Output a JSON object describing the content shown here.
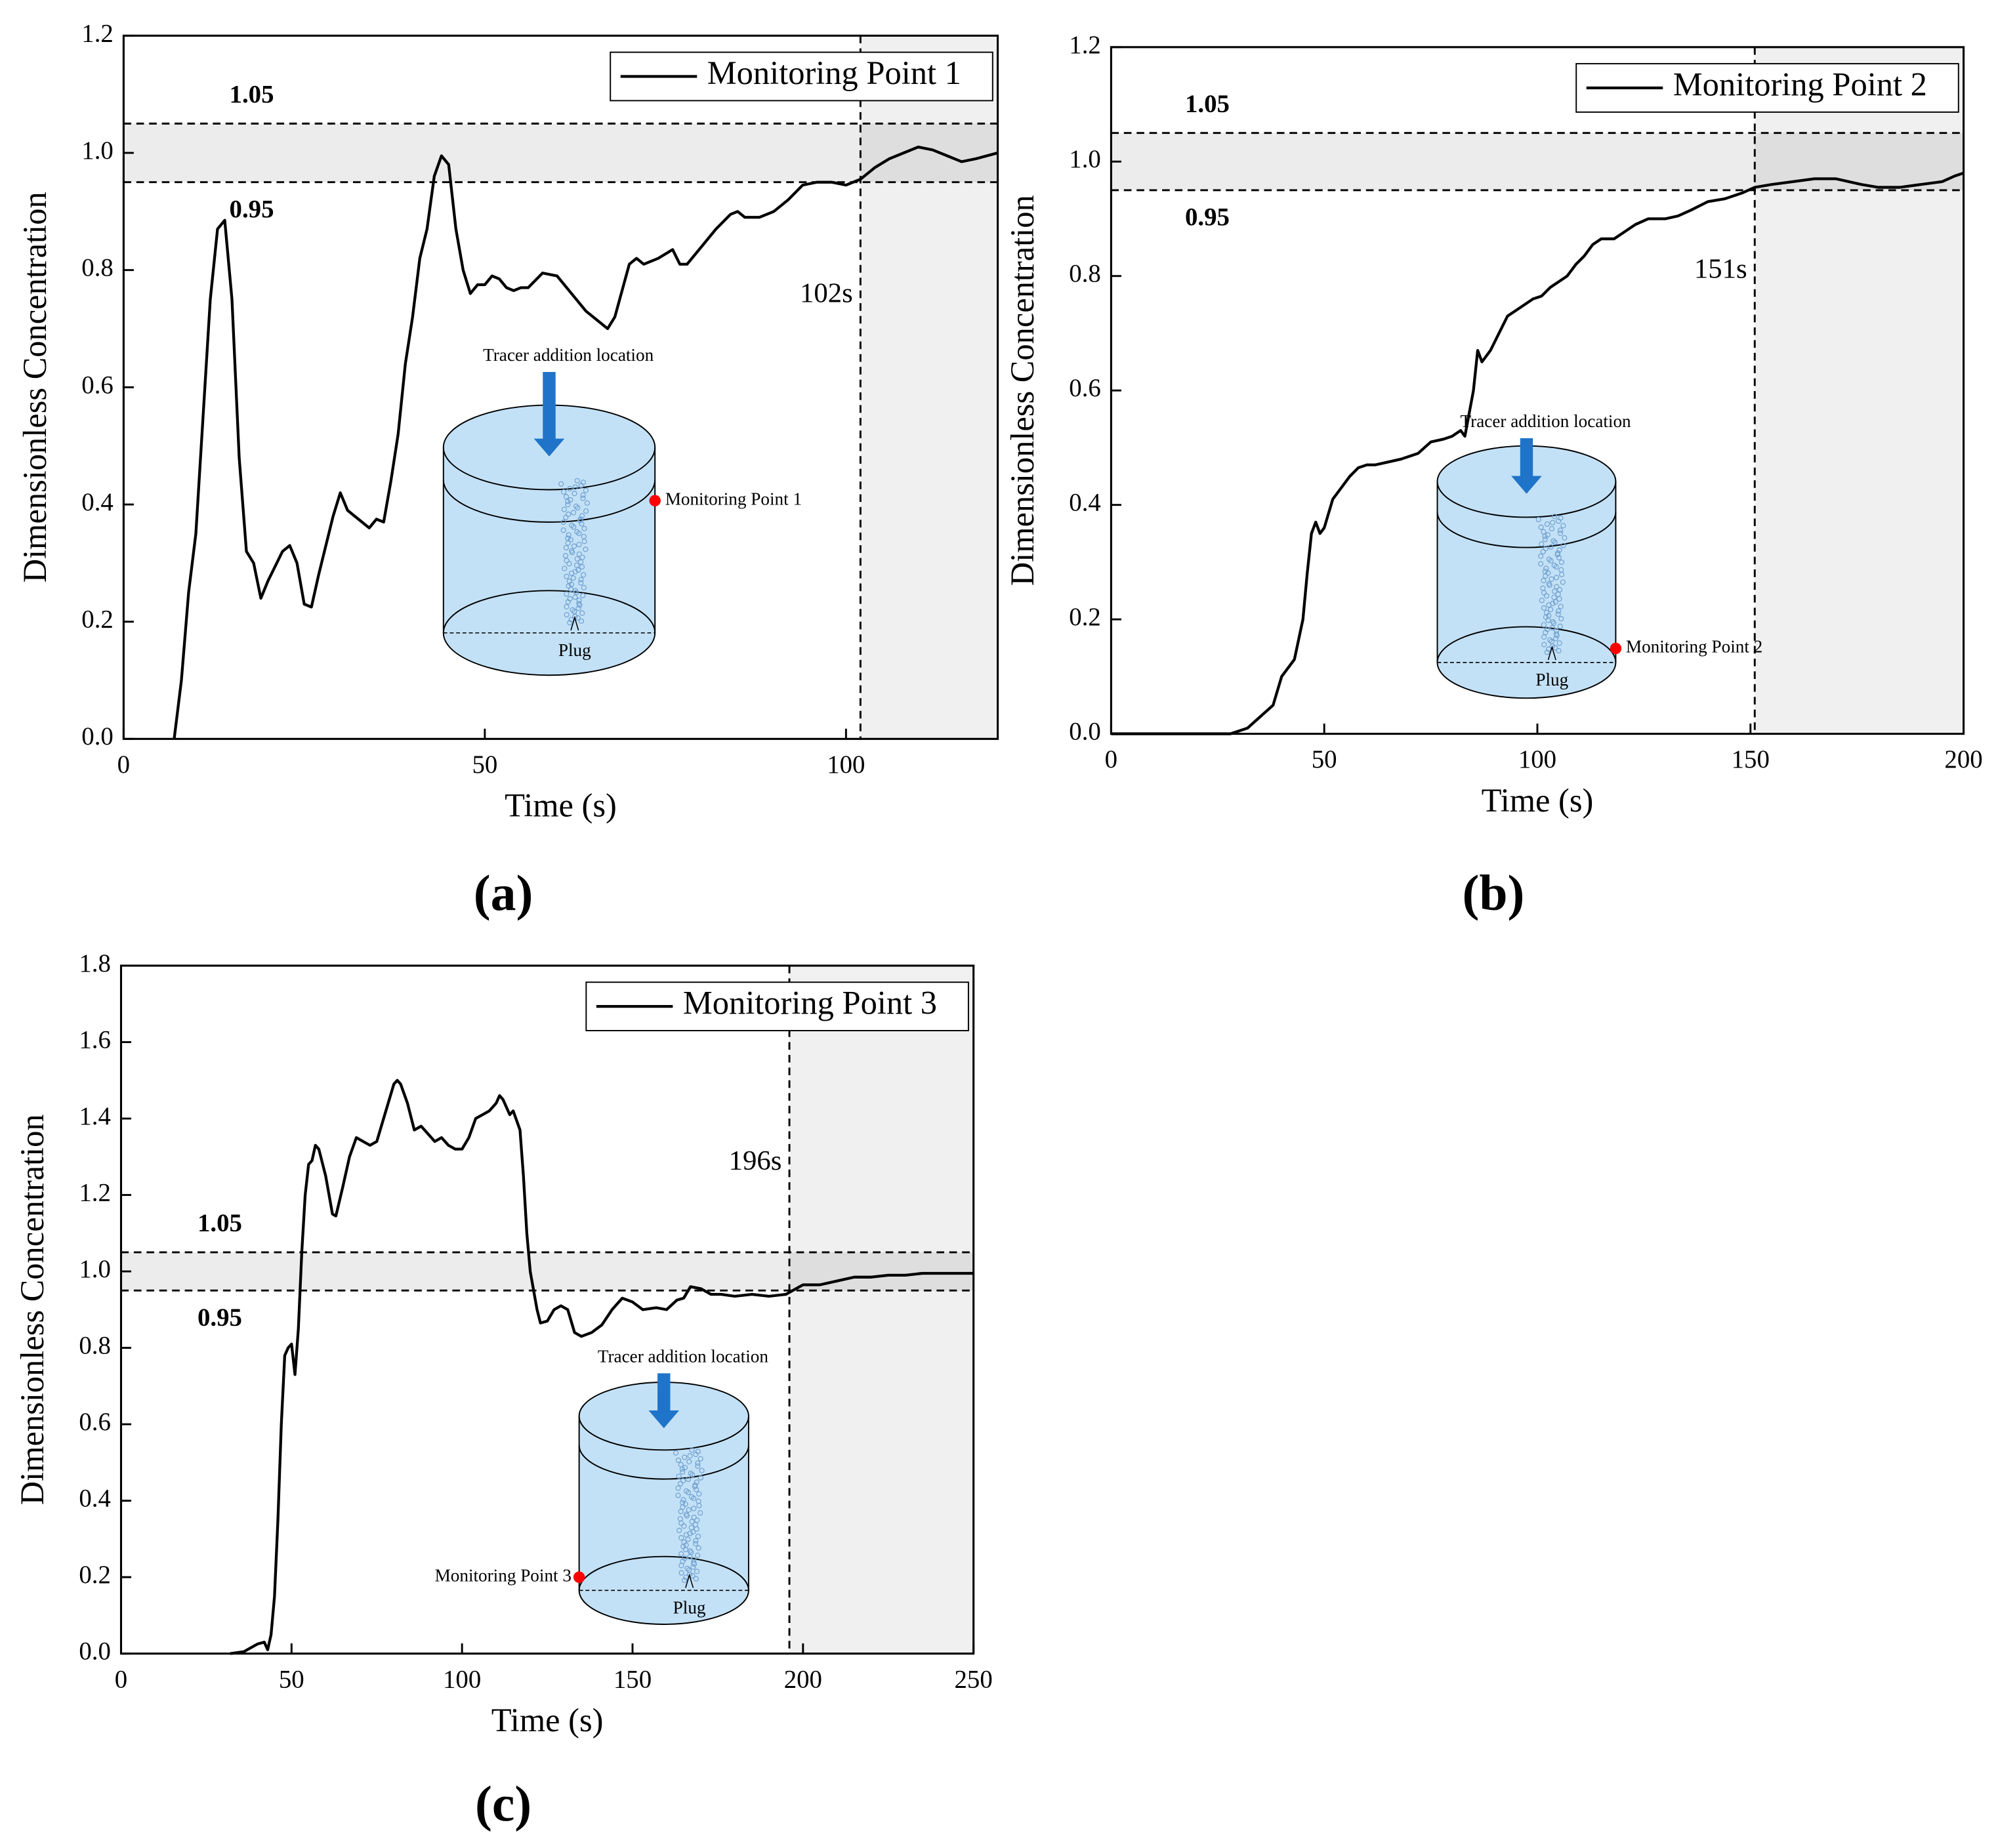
{
  "chart_data": [
    {
      "type": "line",
      "panel": "(a)",
      "xlabel": "Time (s)",
      "ylabel": "Dimensionless Concentration",
      "xlim": [
        0,
        121
      ],
      "ylim": [
        0,
        1.2
      ],
      "xticks": [
        0,
        50,
        100
      ],
      "yticks": [
        {
          "value": 0,
          "label": "0.0"
        },
        0.2,
        0.4,
        0.6,
        0.8,
        {
          "value": 1,
          "label": "1.0"
        },
        1.2
      ],
      "legend": "upper right",
      "x": [
        7,
        8,
        9,
        10,
        11,
        12,
        13,
        14,
        15,
        16,
        17,
        18,
        19,
        20,
        22,
        23,
        24,
        25,
        26,
        27,
        29,
        30,
        31,
        33,
        34,
        35,
        36,
        37,
        38,
        39,
        40,
        41,
        42,
        43,
        44,
        45,
        46,
        47,
        48,
        49,
        50,
        51,
        52,
        53,
        54,
        55,
        56,
        58,
        60,
        62,
        64,
        66,
        67,
        68,
        70,
        71,
        72,
        74,
        76,
        77,
        78,
        80,
        82,
        84,
        85,
        86,
        88,
        90,
        92,
        94,
        96,
        98,
        100,
        102,
        104,
        106,
        108,
        110,
        112,
        114,
        116,
        118,
        121
      ],
      "series": [
        {
          "name": "Monitoring Point 1",
          "color": "#000000",
          "values": [
            0,
            0.1,
            0.25,
            0.35,
            0.55,
            0.75,
            0.87,
            0.885,
            0.75,
            0.48,
            0.32,
            0.3,
            0.24,
            0.27,
            0.32,
            0.33,
            0.3,
            0.23,
            0.225,
            0.28,
            0.38,
            0.42,
            0.39,
            0.37,
            0.36,
            0.375,
            0.37,
            0.44,
            0.52,
            0.64,
            0.72,
            0.82,
            0.87,
            0.96,
            0.995,
            0.98,
            0.87,
            0.8,
            0.76,
            0.775,
            0.775,
            0.79,
            0.785,
            0.77,
            0.765,
            0.77,
            0.77,
            0.795,
            0.79,
            0.76,
            0.73,
            0.71,
            0.7,
            0.72,
            0.81,
            0.82,
            0.81,
            0.82,
            0.835,
            0.81,
            0.81,
            0.84,
            0.87,
            0.895,
            0.9,
            0.89,
            0.89,
            0.9,
            0.92,
            0.945,
            0.95,
            0.95,
            0.945,
            0.955,
            0.975,
            0.99,
            1.0,
            1.01,
            1.005,
            0.995,
            0.985,
            0.99,
            1.0
          ]
        }
      ],
      "hlines": [
        {
          "value": 1.05,
          "label": "1.05"
        },
        {
          "value": 0.95,
          "label": "0.95"
        }
      ],
      "vline": {
        "value": 102,
        "label": "102s"
      },
      "inset": {
        "top_label": "Tracer addition location",
        "point_label": "Monitoring Point 1",
        "bottom_label": "Plug"
      }
    },
    {
      "type": "line",
      "panel": "(b)",
      "xlabel": "Time (s)",
      "ylabel": "Dimensionless Concentration",
      "xlim": [
        0,
        200
      ],
      "ylim": [
        0,
        1.2
      ],
      "xticks": [
        0,
        50,
        100,
        150,
        200
      ],
      "yticks": [
        {
          "value": 0,
          "label": "0.0"
        },
        0.2,
        0.4,
        0.6,
        0.8,
        {
          "value": 1,
          "label": "1.0"
        },
        1.2
      ],
      "legend": "upper right",
      "x": [
        0,
        28,
        32,
        35,
        38,
        40,
        41,
        43,
        45,
        46,
        47,
        48,
        49,
        50,
        52,
        54,
        56,
        58,
        60,
        62,
        65,
        68,
        72,
        75,
        78,
        80,
        82,
        83,
        85,
        86,
        87,
        89,
        91,
        93,
        95,
        97,
        99,
        101,
        103,
        105,
        107,
        109,
        111,
        113,
        115,
        118,
        120,
        123,
        126,
        130,
        133,
        136,
        140,
        144,
        148,
        151,
        155,
        160,
        165,
        170,
        173,
        176,
        180,
        185,
        190,
        195,
        198,
        200
      ],
      "series": [
        {
          "name": "Monitoring Point 2",
          "color": "#000000",
          "values": [
            0,
            0,
            0.01,
            0.03,
            0.05,
            0.1,
            0.11,
            0.13,
            0.2,
            0.28,
            0.35,
            0.37,
            0.35,
            0.36,
            0.41,
            0.43,
            0.45,
            0.465,
            0.47,
            0.47,
            0.475,
            0.48,
            0.49,
            0.51,
            0.515,
            0.52,
            0.53,
            0.52,
            0.6,
            0.67,
            0.65,
            0.67,
            0.7,
            0.73,
            0.74,
            0.75,
            0.76,
            0.765,
            0.78,
            0.79,
            0.8,
            0.82,
            0.835,
            0.855,
            0.865,
            0.865,
            0.875,
            0.89,
            0.9,
            0.9,
            0.905,
            0.915,
            0.93,
            0.935,
            0.945,
            0.955,
            0.96,
            0.965,
            0.97,
            0.97,
            0.965,
            0.96,
            0.955,
            0.955,
            0.96,
            0.965,
            0.975,
            0.98
          ]
        }
      ],
      "hlines": [
        {
          "value": 1.05,
          "label": "1.05"
        },
        {
          "value": 0.95,
          "label": "0.95"
        }
      ],
      "vline": {
        "value": 151,
        "label": "151s"
      },
      "inset": {
        "top_label": "Tracer addition location",
        "point_label": "Monitoring Point 2",
        "bottom_label": "Plug"
      }
    },
    {
      "type": "line",
      "panel": "(c)",
      "xlabel": "Time (s)",
      "ylabel": "Dimensionless Concentration",
      "xlim": [
        0,
        250
      ],
      "ylim": [
        0,
        1.8
      ],
      "xticks": [
        0,
        50,
        100,
        150,
        200,
        250
      ],
      "yticks": [
        {
          "value": 0,
          "label": "0.0"
        },
        0.2,
        0.4,
        0.6,
        0.8,
        {
          "value": 1,
          "label": "1.0"
        },
        1.2,
        1.4,
        1.6,
        1.8
      ],
      "legend": "upper right",
      "x": [
        32,
        36,
        40,
        42,
        43,
        44,
        45,
        46,
        47,
        48,
        49,
        50,
        51,
        52,
        53,
        54,
        55,
        56,
        57,
        58,
        60,
        62,
        63,
        65,
        67,
        69,
        71,
        73,
        75,
        77,
        79,
        80,
        81,
        82,
        84,
        86,
        88,
        90,
        92,
        94,
        96,
        98,
        100,
        102,
        104,
        106,
        108,
        110,
        111,
        112,
        114,
        115,
        117,
        118,
        119,
        120,
        122,
        123,
        125,
        127,
        129,
        131,
        133,
        135,
        138,
        141,
        144,
        147,
        150,
        153,
        157,
        160,
        163,
        165,
        167,
        170,
        173,
        176,
        180,
        185,
        190,
        195,
        198,
        200,
        205,
        210,
        215,
        220,
        225,
        230,
        235,
        240,
        245,
        250
      ],
      "series": [
        {
          "name": "Monitoring Point 3",
          "color": "#000000",
          "values": [
            0,
            0.005,
            0.025,
            0.03,
            0.01,
            0.05,
            0.15,
            0.35,
            0.6,
            0.78,
            0.8,
            0.81,
            0.73,
            0.85,
            1.05,
            1.2,
            1.28,
            1.29,
            1.33,
            1.32,
            1.25,
            1.15,
            1.145,
            1.22,
            1.3,
            1.35,
            1.34,
            1.33,
            1.34,
            1.4,
            1.46,
            1.49,
            1.5,
            1.49,
            1.44,
            1.37,
            1.38,
            1.36,
            1.34,
            1.35,
            1.33,
            1.32,
            1.32,
            1.35,
            1.4,
            1.41,
            1.42,
            1.44,
            1.46,
            1.45,
            1.41,
            1.42,
            1.37,
            1.25,
            1.1,
            1.0,
            0.9,
            0.865,
            0.87,
            0.9,
            0.91,
            0.9,
            0.84,
            0.83,
            0.84,
            0.86,
            0.9,
            0.93,
            0.92,
            0.9,
            0.905,
            0.9,
            0.925,
            0.93,
            0.96,
            0.955,
            0.94,
            0.94,
            0.935,
            0.94,
            0.935,
            0.94,
            0.955,
            0.965,
            0.965,
            0.975,
            0.985,
            0.985,
            0.99,
            0.99,
            0.995,
            0.995,
            0.995,
            0.995
          ]
        }
      ],
      "hlines": [
        {
          "value": 1.05,
          "label": "1.05"
        },
        {
          "value": 0.95,
          "label": "0.95"
        }
      ],
      "vline": {
        "value": 196,
        "label": "196s"
      },
      "inset": {
        "top_label": "Tracer addition location",
        "point_label": "Monitoring Point 3",
        "bottom_label": "Plug"
      }
    }
  ]
}
